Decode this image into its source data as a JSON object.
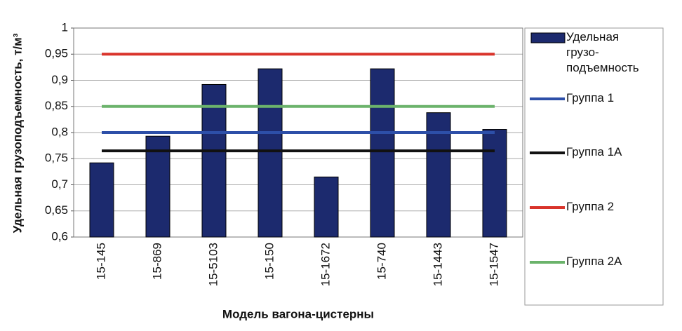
{
  "chart_data": {
    "type": "bar",
    "x_label": "Модель вагона-цистерны",
    "y_label": "Удельная грузоподъемность, т/м³",
    "categories": [
      "15-145",
      "15-869",
      "15-5103",
      "15-150",
      "15-1672",
      "15-740",
      "15-1443",
      "15-1547"
    ],
    "series": [
      {
        "name": "Удельная грузо-подъемность",
        "type": "bar",
        "color": "#1c2a6e",
        "values": [
          0.742,
          0.793,
          0.892,
          0.922,
          0.715,
          0.922,
          0.838,
          0.806
        ]
      },
      {
        "name": "Группа 1",
        "type": "line",
        "color": "#2d4fa8",
        "values": [
          0.8,
          0.8,
          0.8,
          0.8,
          0.8,
          0.8,
          0.8,
          0.8
        ]
      },
      {
        "name": "Группа 1А",
        "type": "line",
        "color": "#111111",
        "values": [
          0.765,
          0.765,
          0.765,
          0.765,
          0.765,
          0.765,
          0.765,
          0.765
        ]
      },
      {
        "name": "Группа 2",
        "type": "line",
        "color": "#d9342b",
        "values": [
          0.95,
          0.95,
          0.95,
          0.95,
          0.95,
          0.95,
          0.95,
          0.95
        ]
      },
      {
        "name": "Группа 2А",
        "type": "line",
        "color": "#6bb36b",
        "values": [
          0.85,
          0.85,
          0.85,
          0.85,
          0.85,
          0.85,
          0.85,
          0.85
        ]
      }
    ],
    "ylim": [
      0.6,
      1
    ],
    "yticks": [
      {
        "value": 0.6,
        "label": "0,6"
      },
      {
        "value": 0.65,
        "label": "0,65"
      },
      {
        "value": 0.7,
        "label": "0,7"
      },
      {
        "value": 0.75,
        "label": "0,75"
      },
      {
        "value": 0.8,
        "label": "0,8"
      },
      {
        "value": 0.85,
        "label": "0,85"
      },
      {
        "value": 0.9,
        "label": "0,9"
      },
      {
        "value": 0.95,
        "label": "0,95"
      },
      1
    ],
    "grid": true,
    "legend": "right"
  }
}
